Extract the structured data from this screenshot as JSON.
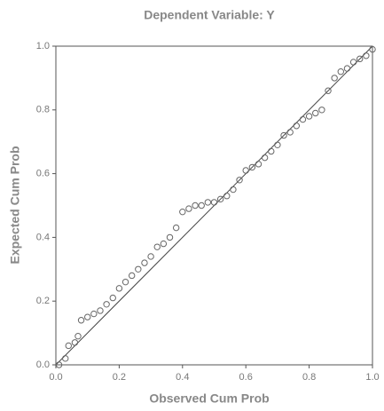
{
  "chart_data": {
    "type": "scatter",
    "title": "Dependent Variable: Y",
    "x_label": "Observed Cum Prob",
    "y_label": "Expected Cum Prob",
    "x": [
      0.01,
      0.03,
      0.04,
      0.06,
      0.07,
      0.08,
      0.1,
      0.12,
      0.14,
      0.16,
      0.18,
      0.2,
      0.22,
      0.24,
      0.26,
      0.28,
      0.3,
      0.32,
      0.34,
      0.36,
      0.38,
      0.4,
      0.42,
      0.44,
      0.46,
      0.48,
      0.5,
      0.52,
      0.54,
      0.56,
      0.58,
      0.6,
      0.62,
      0.64,
      0.66,
      0.68,
      0.7,
      0.72,
      0.74,
      0.76,
      0.78,
      0.8,
      0.82,
      0.84,
      0.86,
      0.88,
      0.9,
      0.92,
      0.94,
      0.96,
      0.98,
      1.0
    ],
    "values": [
      0.0,
      0.02,
      0.06,
      0.07,
      0.09,
      0.14,
      0.15,
      0.16,
      0.17,
      0.19,
      0.21,
      0.24,
      0.26,
      0.28,
      0.3,
      0.32,
      0.34,
      0.37,
      0.38,
      0.4,
      0.43,
      0.48,
      0.49,
      0.5,
      0.5,
      0.51,
      0.51,
      0.52,
      0.53,
      0.55,
      0.58,
      0.61,
      0.62,
      0.63,
      0.65,
      0.67,
      0.69,
      0.72,
      0.73,
      0.75,
      0.77,
      0.78,
      0.79,
      0.8,
      0.86,
      0.9,
      0.92,
      0.93,
      0.95,
      0.96,
      0.97,
      0.99
    ],
    "color": "#666666",
    "xlim": [
      0,
      1
    ],
    "ylim": [
      0,
      1
    ],
    "xticks": [
      {
        "value": 0,
        "label": "0.0"
      },
      0.2,
      0.4,
      0.6,
      0.8,
      {
        "value": 1,
        "label": "1.0"
      }
    ],
    "yticks": [
      {
        "value": 0,
        "label": "0.0"
      },
      0.2,
      0.4,
      0.6,
      0.8,
      {
        "value": 1,
        "label": "1.0"
      }
    ]
  }
}
